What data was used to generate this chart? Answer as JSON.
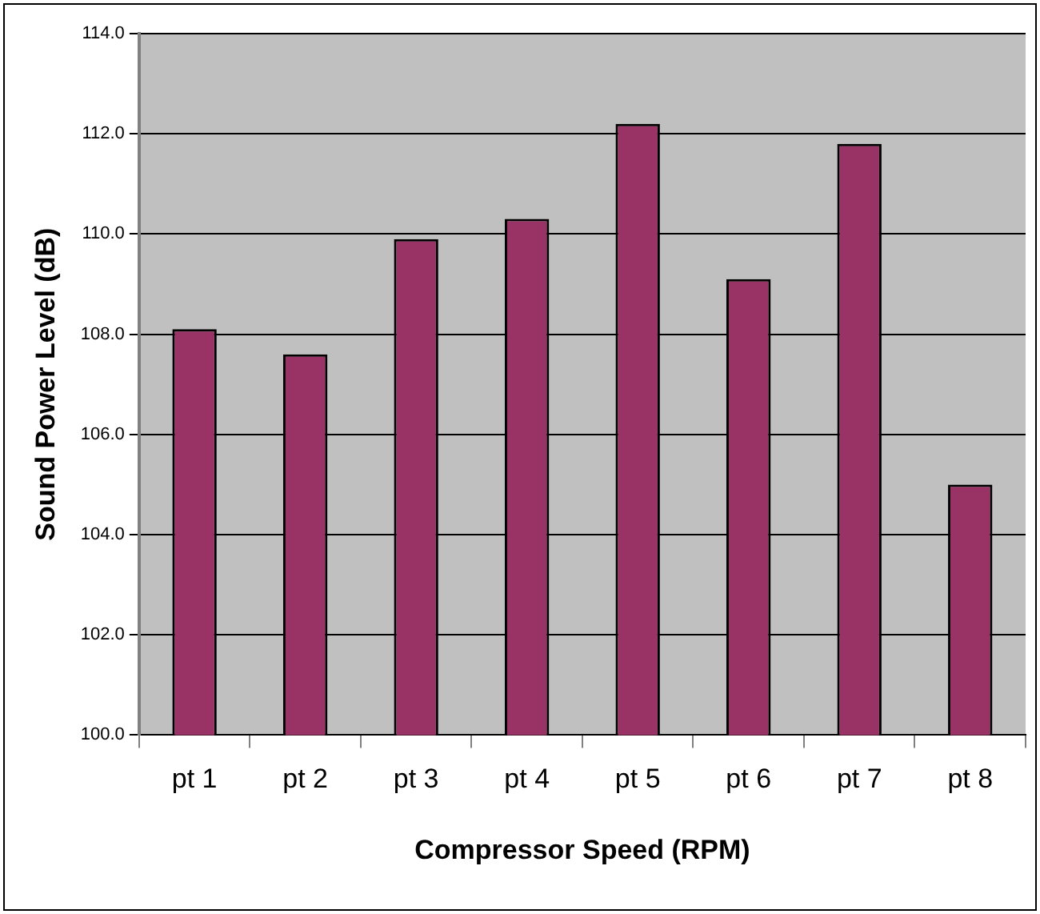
{
  "chart_data": {
    "type": "bar",
    "xlabel": "Compressor Speed (RPM)",
    "ylabel": "Sound Power Level (dB)",
    "categories": [
      "pt 1",
      "pt 2",
      "pt 3",
      "pt 4",
      "pt 5",
      "pt 6",
      "pt 7",
      "pt 8"
    ],
    "values": [
      108.1,
      107.6,
      109.9,
      110.3,
      112.2,
      109.1,
      111.8,
      105.0
    ],
    "color": "#993366",
    "ylim": [
      100,
      114
    ],
    "yticks": [
      {
        "value": 100,
        "label": "100.0"
      },
      {
        "value": 102,
        "label": "102.0"
      },
      {
        "value": 104,
        "label": "104.0"
      },
      {
        "value": 106,
        "label": "106.0"
      },
      {
        "value": 108,
        "label": "108.0"
      },
      {
        "value": 110,
        "label": "110.0"
      },
      {
        "value": 112,
        "label": "112.0"
      },
      {
        "value": 114,
        "label": "114.0"
      }
    ],
    "grid": "y",
    "legend": false
  }
}
